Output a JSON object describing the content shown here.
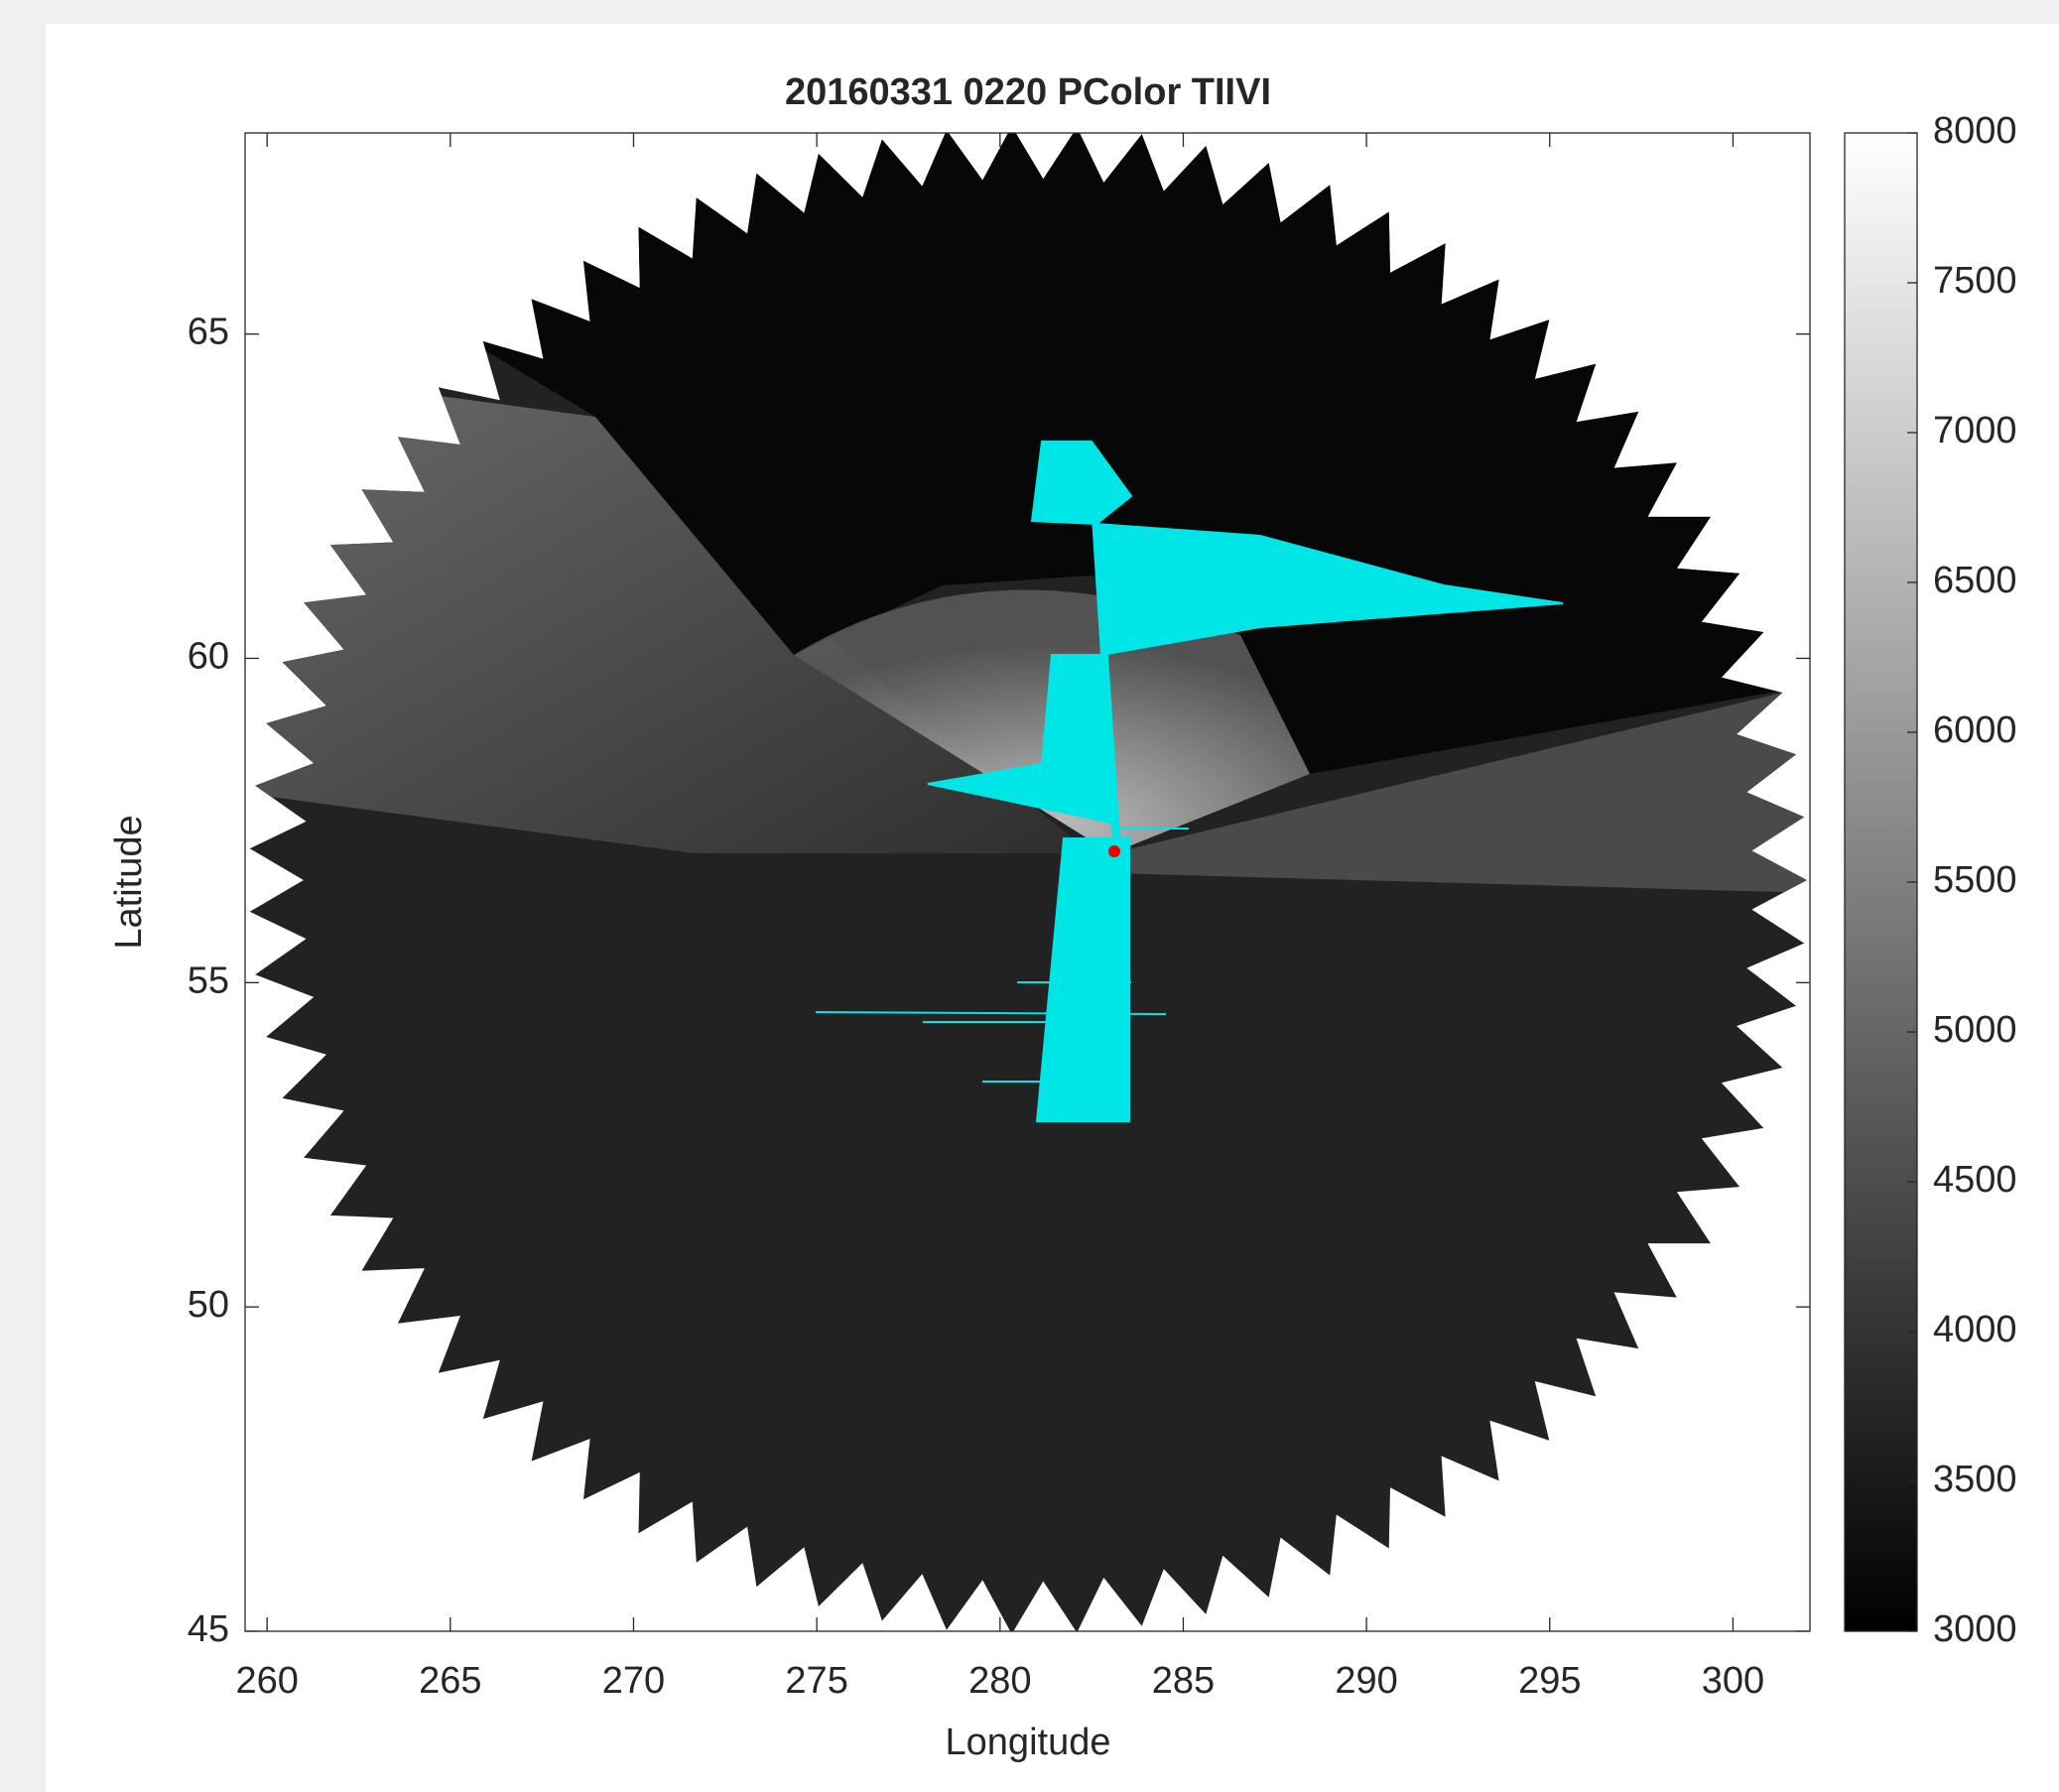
{
  "chart_data": {
    "type": "pcolor",
    "title": "20160331 0220 PColor TIIVI",
    "xlabel": "Longitude",
    "ylabel": "Latitude",
    "xlim": [
      259.4,
      302.1
    ],
    "ylim": [
      45,
      68.1
    ],
    "xticks": [
      260,
      265,
      270,
      275,
      280,
      285,
      290,
      295,
      300
    ],
    "yticks": [
      45,
      50,
      55,
      60,
      65
    ],
    "colormap": "gray",
    "clim": [
      3000,
      8000
    ],
    "cticks": [
      3000,
      3500,
      4000,
      4500,
      5000,
      5500,
      6000,
      6500,
      7000,
      7500,
      8000
    ]
  }
}
